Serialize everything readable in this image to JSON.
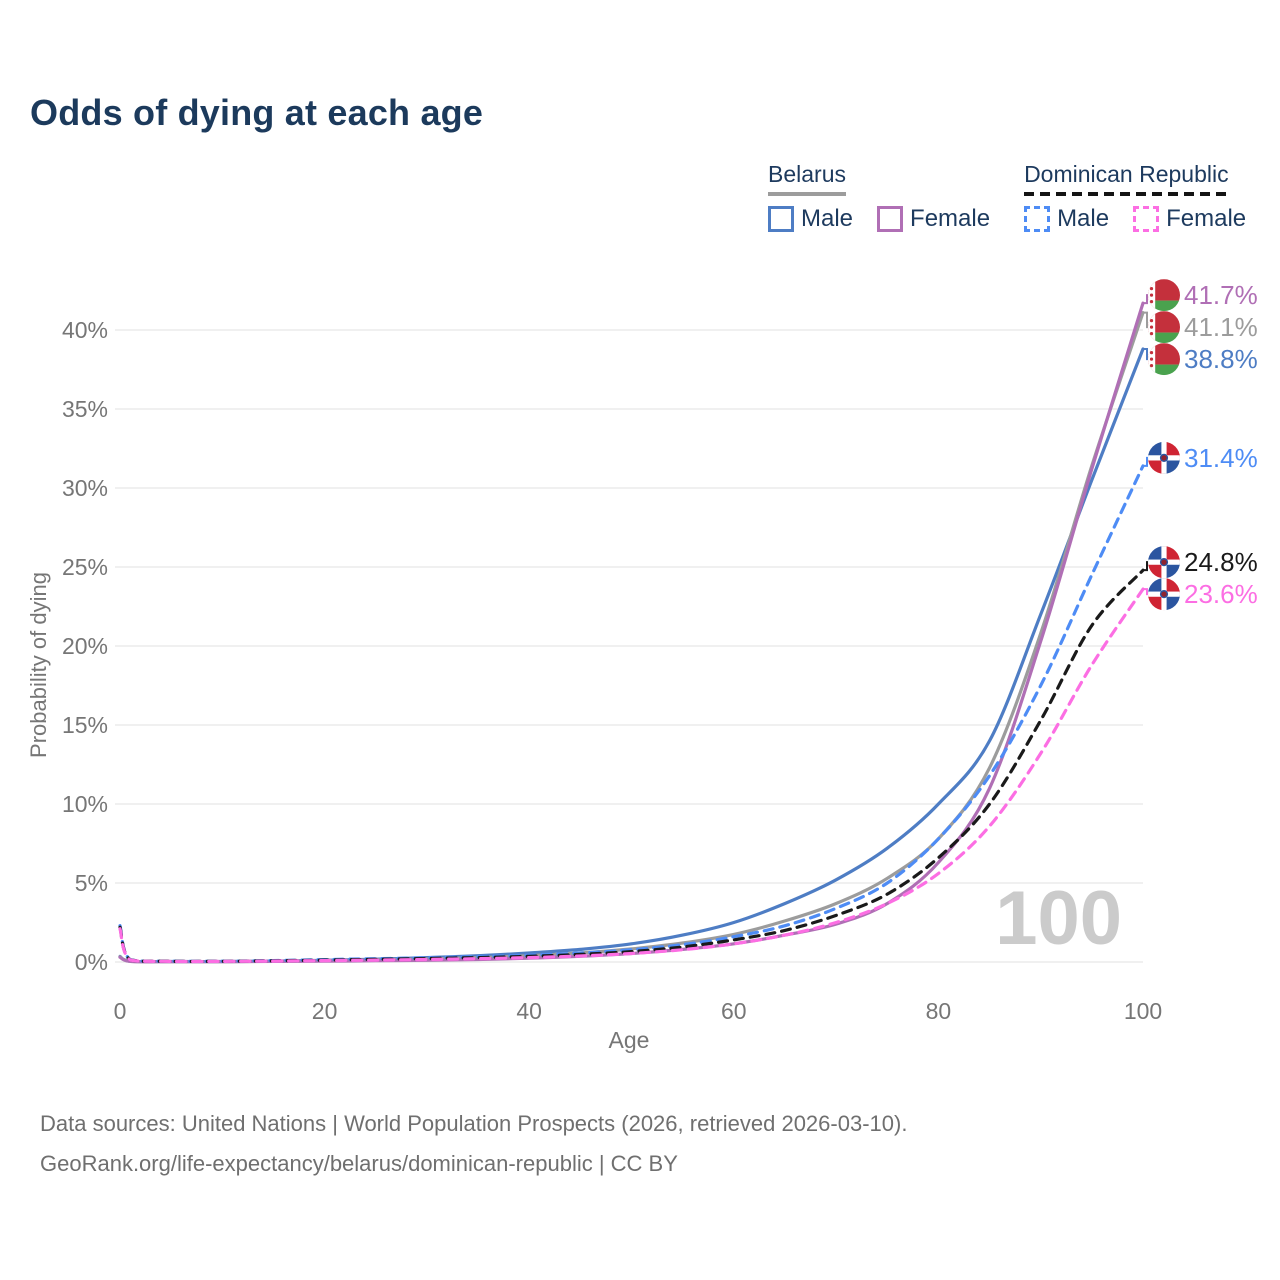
{
  "title": "Odds of dying at each age",
  "legend": {
    "groups": [
      {
        "country": "Belarus",
        "underline_style": "solid",
        "underline_color": "#9c9c9c",
        "items": [
          {
            "label": "Male",
            "color": "#4e7dc4",
            "dashed": false
          },
          {
            "label": "Female",
            "color": "#b06fb5",
            "dashed": false
          }
        ]
      },
      {
        "country": "Dominican Republic",
        "underline_style": "dashed",
        "underline_color": "#141414",
        "items": [
          {
            "label": "Male",
            "color": "#4e8cf5",
            "dashed": true
          },
          {
            "label": "Female",
            "color": "#fc6ee3",
            "dashed": true
          }
        ]
      }
    ]
  },
  "watermark": "100",
  "footer": {
    "line1": "Data sources: United Nations | World Population Prospects (2026, retrieved 2026-03-10).",
    "line2": "GeoRank.org/life-expectancy/belarus/dominican-republic | CC BY"
  },
  "chart_data": {
    "type": "line",
    "title": "Odds of dying at each age",
    "xlabel": "Age",
    "ylabel": "Probability of dying",
    "x_ticks": [
      0,
      20,
      40,
      60,
      80,
      100
    ],
    "y_ticks_percent": [
      0,
      5,
      10,
      15,
      20,
      25,
      30,
      35,
      40
    ],
    "xlim": [
      0,
      100
    ],
    "ylim_percent": [
      0,
      43.5
    ],
    "grid": "horizontal-only",
    "legend_position": "top-right",
    "ages": [
      0,
      1,
      5,
      10,
      15,
      20,
      25,
      30,
      35,
      40,
      45,
      50,
      55,
      60,
      65,
      70,
      75,
      80,
      85,
      90,
      95,
      100
    ],
    "series": [
      {
        "name": "Belarus Male",
        "country": "Belarus",
        "sex": "male",
        "style": "solid",
        "color": "#4e7dc4",
        "flag": "by",
        "end_label": "38.8%",
        "end_value": 38.8,
        "values": [
          0.35,
          0.05,
          0.03,
          0.03,
          0.06,
          0.11,
          0.18,
          0.28,
          0.4,
          0.57,
          0.8,
          1.15,
          1.7,
          2.5,
          3.7,
          5.2,
          7.2,
          10.0,
          14.0,
          22.0,
          30.5,
          38.8
        ]
      },
      {
        "name": "Belarus Both sexes",
        "country": "Belarus",
        "sex": "both",
        "style": "solid",
        "color": "#9c9c9c",
        "flag": "by",
        "end_label": "41.1%",
        "end_value": 41.1,
        "values": [
          0.33,
          0.045,
          0.025,
          0.025,
          0.045,
          0.08,
          0.13,
          0.19,
          0.28,
          0.4,
          0.57,
          0.83,
          1.2,
          1.75,
          2.6,
          3.7,
          5.3,
          7.8,
          12.3,
          20.8,
          31.4,
          41.1
        ]
      },
      {
        "name": "Belarus Female",
        "country": "Belarus",
        "sex": "female",
        "style": "solid",
        "color": "#b06fb5",
        "flag": "by",
        "end_label": "41.7%",
        "end_value": 41.7,
        "values": [
          0.3,
          0.04,
          0.02,
          0.02,
          0.035,
          0.05,
          0.08,
          0.11,
          0.16,
          0.24,
          0.36,
          0.54,
          0.8,
          1.15,
          1.7,
          2.4,
          3.7,
          6.3,
          11.0,
          20.3,
          31.2,
          41.7
        ]
      },
      {
        "name": "Dominican Republic Male",
        "country": "Dominican Republic",
        "sex": "male",
        "style": "dashed",
        "color": "#4e8cf5",
        "flag": "do",
        "end_label": "31.4%",
        "end_value": 31.4,
        "values": [
          2.3,
          0.15,
          0.05,
          0.05,
          0.09,
          0.15,
          0.21,
          0.27,
          0.34,
          0.43,
          0.57,
          0.78,
          1.1,
          1.6,
          2.3,
          3.4,
          5.0,
          7.8,
          11.8,
          17.5,
          24.5,
          31.4
        ]
      },
      {
        "name": "Dominican Republic Both sexes",
        "country": "Dominican Republic",
        "sex": "both",
        "style": "dashed",
        "color": "#1a1a1a",
        "flag": "do",
        "end_label": "24.8%",
        "end_value": 24.8,
        "values": [
          2.2,
          0.14,
          0.045,
          0.045,
          0.075,
          0.12,
          0.17,
          0.22,
          0.28,
          0.36,
          0.48,
          0.66,
          0.95,
          1.4,
          2.0,
          2.95,
          4.3,
          6.6,
          10.0,
          15.3,
          21.3,
          24.8
        ]
      },
      {
        "name": "Dominican Republic Female",
        "country": "Dominican Republic",
        "sex": "female",
        "style": "dashed",
        "color": "#fc6ee3",
        "flag": "do",
        "end_label": "23.6%",
        "end_value": 23.6,
        "values": [
          2.1,
          0.13,
          0.04,
          0.04,
          0.06,
          0.09,
          0.12,
          0.16,
          0.21,
          0.28,
          0.38,
          0.54,
          0.78,
          1.15,
          1.7,
          2.5,
          3.7,
          5.6,
          8.6,
          13.2,
          18.8,
          23.6
        ]
      }
    ],
    "colors": {
      "title_text": "#1c3a5c",
      "axis_text": "#767676",
      "gridline": "#ebebeb",
      "watermark": "#cbcbcb",
      "belarus_flag_red": "#c4303c",
      "belarus_flag_green": "#4aa24e",
      "dominican_flag_blue": "#2b55a0",
      "dominican_flag_red": "#cf2433"
    }
  }
}
